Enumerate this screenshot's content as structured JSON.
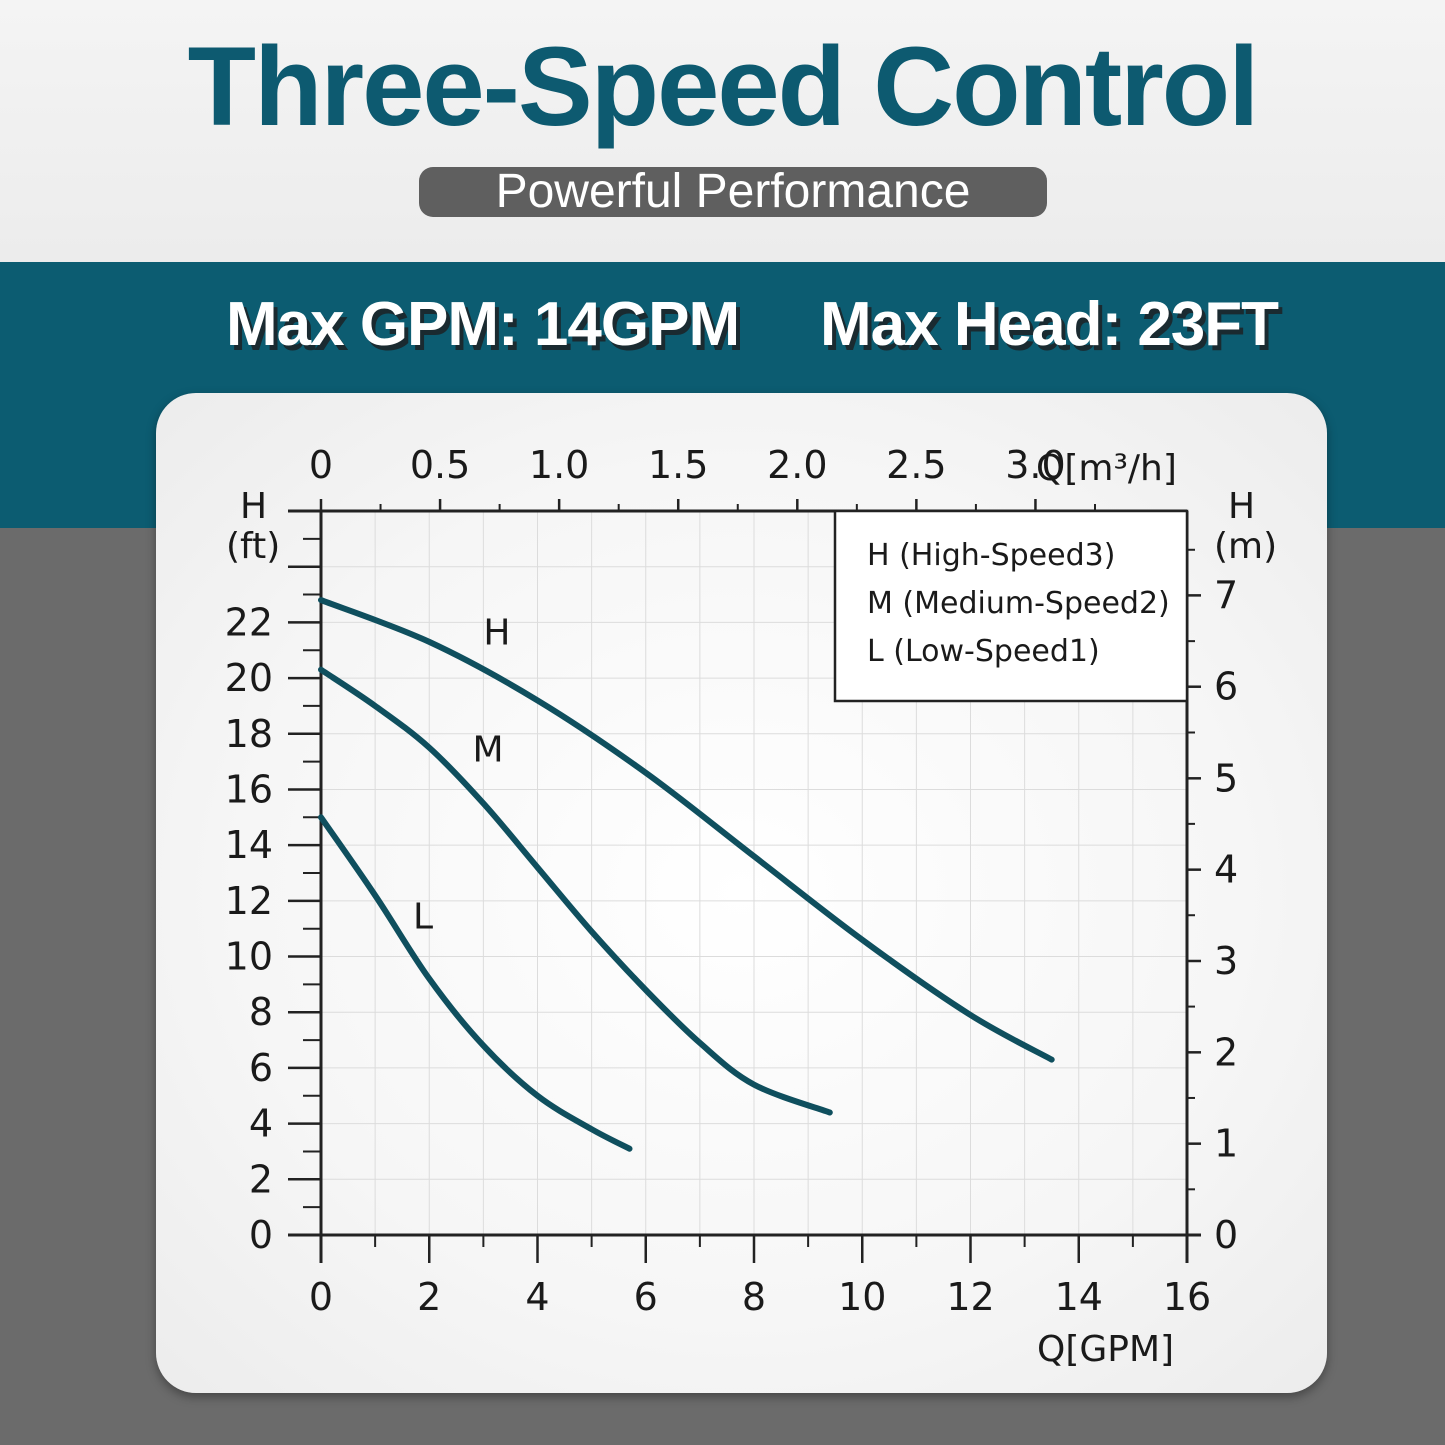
{
  "header": {
    "title": "Three-Speed Control",
    "subtitle": "Powerful Performance"
  },
  "stats": {
    "max_gpm": "Max GPM: 14GPM",
    "max_head": "Max Head: 23FT"
  },
  "colors": {
    "title": "#0d5a70",
    "band": "#0c5c71",
    "curve": "#0f4f5e",
    "pill": "#5f5f5f",
    "background": "#6b6b6b"
  },
  "chart_data": {
    "type": "line",
    "xlabel_bottom": "Q[GPM]",
    "xlabel_top": "Q[m³/h]",
    "ylabel_left": [
      "H",
      "(ft)"
    ],
    "ylabel_right": [
      "H",
      "(m)"
    ],
    "xlim": [
      0,
      16
    ],
    "ylim": [
      0,
      26
    ],
    "x_ticks": [
      0,
      2,
      4,
      6,
      8,
      10,
      12,
      14,
      16
    ],
    "y_ticks": [
      0,
      2,
      4,
      6,
      8,
      10,
      12,
      14,
      16,
      18,
      20,
      22
    ],
    "top_ticks": [
      {
        "label": "0",
        "gpm": 0
      },
      {
        "label": "0.5",
        "gpm": 2.2
      },
      {
        "label": "1.0",
        "gpm": 4.4
      },
      {
        "label": "1.5",
        "gpm": 6.6
      },
      {
        "label": "2.0",
        "gpm": 8.8
      },
      {
        "label": "2.5",
        "gpm": 11.0
      },
      {
        "label": "3.0",
        "gpm": 13.2
      }
    ],
    "right_ticks": [
      {
        "label": "0",
        "ft": 0
      },
      {
        "label": "1",
        "ft": 3.28
      },
      {
        "label": "2",
        "ft": 6.56
      },
      {
        "label": "3",
        "ft": 9.84
      },
      {
        "label": "4",
        "ft": 13.12
      },
      {
        "label": "5",
        "ft": 16.4
      },
      {
        "label": "6",
        "ft": 19.69
      },
      {
        "label": "7",
        "ft": 22.97
      }
    ],
    "grid": true,
    "legend": {
      "position": "top-right",
      "entries": [
        "H (High-Speed3)",
        "M (Medium-Speed2)",
        "L (Low-Speed1)"
      ]
    },
    "series": [
      {
        "name": "H",
        "x": [
          0,
          2,
          4,
          6,
          8,
          10,
          12,
          13.5
        ],
        "y": [
          22.8,
          21.3,
          19.2,
          16.6,
          13.6,
          10.6,
          7.9,
          6.3
        ]
      },
      {
        "name": "M",
        "x": [
          0,
          1,
          2,
          3,
          4,
          5,
          6,
          7,
          8,
          9.4
        ],
        "y": [
          20.3,
          19.0,
          17.5,
          15.5,
          13.2,
          10.9,
          8.8,
          6.9,
          5.4,
          4.4
        ]
      },
      {
        "name": "L",
        "x": [
          0,
          1,
          2,
          3,
          4,
          5,
          5.7
        ],
        "y": [
          15.0,
          12.2,
          9.2,
          6.8,
          5.0,
          3.8,
          3.1
        ]
      }
    ],
    "curve_labels": [
      {
        "text": "H",
        "x": 3.0,
        "y": 21.2
      },
      {
        "text": "M",
        "x": 2.8,
        "y": 17.0
      },
      {
        "text": "L",
        "x": 1.7,
        "y": 11.0
      }
    ]
  }
}
